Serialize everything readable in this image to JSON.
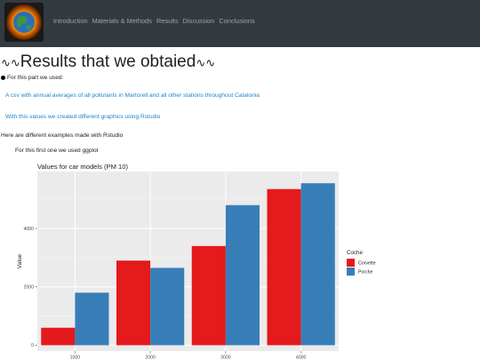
{
  "navbar": {
    "logo_icon": "earth-logo-icon",
    "links": [
      "Introduction",
      "Materials & Methods",
      "Results",
      "Discussion",
      "Conclusions"
    ]
  },
  "page": {
    "title": "Results that we obtaied",
    "title_ornament": "∿∿",
    "intro_bullet": "For this part we used:",
    "link1": "A csv with annual averages of all pollutants in Martorell and all other stations throughout Catalonia",
    "link2": "With this values we created different graphics using Rstudio",
    "examples_text": "Here are different examples made with Rstudio",
    "ggplot_text": "For this first one we used ggplot"
  },
  "chart_data": {
    "type": "bar",
    "title": "Values for car models (PM 10)",
    "xlabel": "",
    "ylabel": "Value",
    "categories": [
      "1000",
      "2000",
      "3000",
      "4000"
    ],
    "series": [
      {
        "name": "Corvette",
        "color": "#e41a1c",
        "values": [
          600,
          2900,
          3400,
          5350
        ]
      },
      {
        "name": "Porche",
        "color": "#377eb8",
        "values": [
          1800,
          2650,
          4800,
          5550
        ]
      }
    ],
    "ylim": [
      -200,
      5950
    ],
    "yticks": [
      0,
      2000,
      4000
    ],
    "ytick_labels": [
      "0",
      "2000",
      "4000"
    ],
    "legend_title": "Coche",
    "legend_position": "right",
    "grid": true,
    "background": "#ebebeb"
  }
}
